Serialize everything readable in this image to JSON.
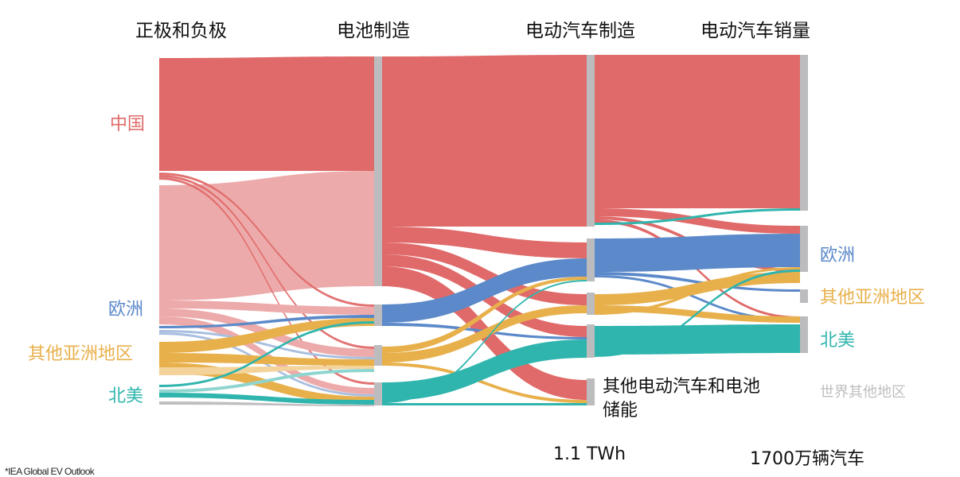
{
  "stages": [
    "正极和负极",
    "电池制造",
    "电动汽车制造",
    "电动汽车销量"
  ],
  "regions": {
    "china": "中国",
    "europe": "欧洲",
    "other_asia": "其他亚洲地区",
    "north_america": "北美",
    "rest_of_world": "世界其他地区"
  },
  "other_node_label": "其他电动汽车和电池储能",
  "other_node_lines": [
    "其他电动汽车和电池",
    "储能"
  ],
  "totals": {
    "battery": "1.1 TWh",
    "sales": "1700万辆汽车"
  },
  "source": "*IEA Global EV Outlook",
  "colors": {
    "china": "#e06a6a",
    "china_light": "#edaaaa",
    "europe": "#5b89c9",
    "europe_light": "#a9bfe0",
    "other_asia": "#e8b04b",
    "other_asia_light": "#f3d39a",
    "north_america": "#2fb5ad",
    "north_america_light": "#8fd5cf",
    "rest_of_world": "#bfbfc1",
    "node": "#bcbcbe"
  }
}
